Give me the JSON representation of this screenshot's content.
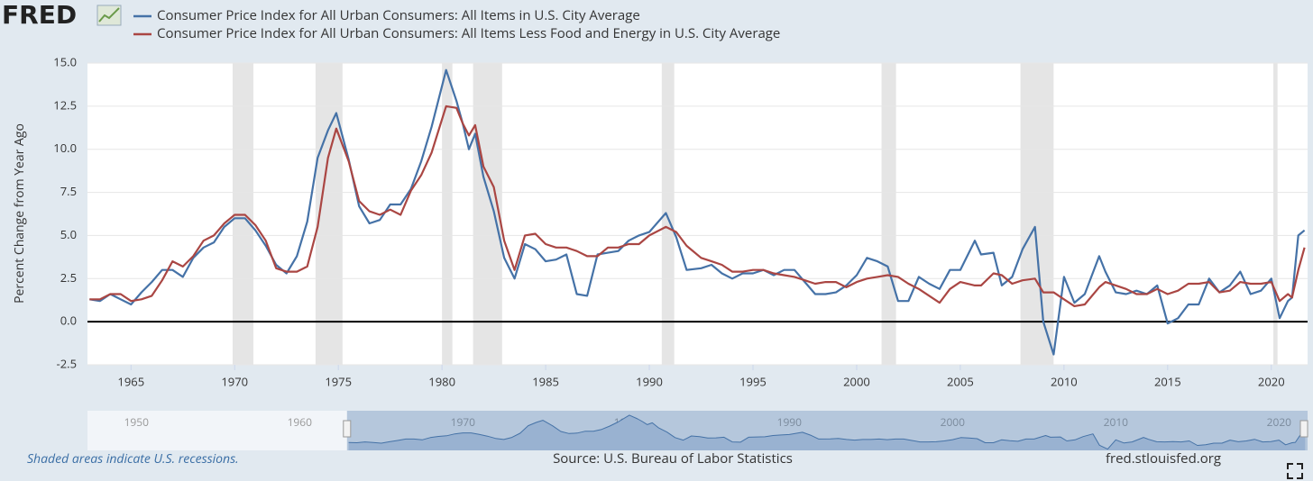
{
  "brand": "FRED",
  "chart_data": {
    "type": "line",
    "y_label": "Percent Change from Year Ago",
    "x": [
      1963,
      1963.5,
      1964,
      1964.5,
      1965,
      1965.5,
      1966,
      1966.5,
      1967,
      1967.5,
      1968,
      1968.5,
      1969,
      1969.5,
      1970,
      1970.5,
      1971,
      1971.5,
      1972,
      1972.5,
      1973,
      1973.5,
      1974,
      1974.5,
      1974.9,
      1975.5,
      1976,
      1976.5,
      1977,
      1977.5,
      1978,
      1978.5,
      1979,
      1979.5,
      1980.2,
      1980.7,
      1981,
      1981.3,
      1981.6,
      1982,
      1982.5,
      1983,
      1983.5,
      1984,
      1984.5,
      1985,
      1985.5,
      1986,
      1986.5,
      1987,
      1987.5,
      1988,
      1988.5,
      1989,
      1989.5,
      1990,
      1990.8,
      1991.3,
      1991.8,
      1992.5,
      1993,
      1993.5,
      1994,
      1994.5,
      1995,
      1995.5,
      1996,
      1996.5,
      1997,
      1997.5,
      1998,
      1998.5,
      1999,
      1999.5,
      2000,
      2000.5,
      2001,
      2001.5,
      2002,
      2002.5,
      2003,
      2003.5,
      2004,
      2004.5,
      2005,
      2005.7,
      2006,
      2006.6,
      2007,
      2007.5,
      2008,
      2008.6,
      2009,
      2009.5,
      2010,
      2010.5,
      2011,
      2011.7,
      2012,
      2012.5,
      2013,
      2013.5,
      2014,
      2014.5,
      2015,
      2015.5,
      2016,
      2016.5,
      2017,
      2017.5,
      2018,
      2018.5,
      2019,
      2019.5,
      2020,
      2020.4,
      2020.8,
      2021,
      2021.3,
      2021.6
    ],
    "series": [
      {
        "name": "Consumer Price Index for All Urban Consumers: All Items in U.S. City Average",
        "color": "#4572a7",
        "values": [
          1.3,
          1.2,
          1.6,
          1.3,
          1.0,
          1.7,
          2.3,
          3.0,
          3.0,
          2.6,
          3.7,
          4.3,
          4.6,
          5.5,
          6.0,
          6.0,
          5.3,
          4.4,
          3.3,
          2.8,
          3.8,
          5.8,
          9.5,
          11.1,
          12.1,
          9.4,
          6.7,
          5.7,
          5.9,
          6.8,
          6.8,
          7.7,
          9.3,
          11.3,
          14.6,
          12.8,
          11.5,
          10.0,
          10.9,
          8.4,
          6.4,
          3.7,
          2.5,
          4.5,
          4.2,
          3.5,
          3.6,
          3.9,
          1.6,
          1.5,
          3.9,
          4.0,
          4.1,
          4.7,
          5.0,
          5.2,
          6.3,
          4.9,
          3.0,
          3.1,
          3.3,
          2.8,
          2.5,
          2.8,
          2.8,
          3.0,
          2.7,
          3.0,
          3.0,
          2.3,
          1.6,
          1.6,
          1.7,
          2.1,
          2.7,
          3.7,
          3.5,
          3.2,
          1.2,
          1.2,
          2.6,
          2.2,
          1.9,
          3.0,
          3.0,
          4.7,
          3.9,
          4.0,
          2.1,
          2.6,
          4.2,
          5.5,
          0.0,
          -1.9,
          2.6,
          1.1,
          1.6,
          3.8,
          2.9,
          1.7,
          1.6,
          1.8,
          1.6,
          2.1,
          -0.1,
          0.2,
          1.0,
          1.0,
          2.5,
          1.7,
          2.1,
          2.9,
          1.6,
          1.8,
          2.5,
          0.2,
          1.2,
          1.4,
          5.0,
          5.3
        ]
      },
      {
        "name": "Consumer Price Index for All Urban Consumers: All Items Less Food and Energy in U.S. City Average",
        "color": "#aa4643",
        "values": [
          1.3,
          1.3,
          1.6,
          1.6,
          1.2,
          1.3,
          1.5,
          2.4,
          3.5,
          3.2,
          3.8,
          4.7,
          5.0,
          5.7,
          6.2,
          6.2,
          5.6,
          4.7,
          3.1,
          2.9,
          2.9,
          3.2,
          5.5,
          9.5,
          11.2,
          9.3,
          7.0,
          6.4,
          6.2,
          6.5,
          6.2,
          7.6,
          8.5,
          9.8,
          12.5,
          12.4,
          11.5,
          10.8,
          11.4,
          9.0,
          7.8,
          4.7,
          3.0,
          5.0,
          5.1,
          4.5,
          4.3,
          4.3,
          4.1,
          3.8,
          3.8,
          4.3,
          4.3,
          4.5,
          4.5,
          5.0,
          5.5,
          5.2,
          4.4,
          3.7,
          3.5,
          3.3,
          2.9,
          2.9,
          3.0,
          3.0,
          2.8,
          2.7,
          2.6,
          2.4,
          2.2,
          2.3,
          2.3,
          2.0,
          2.3,
          2.5,
          2.6,
          2.7,
          2.6,
          2.2,
          1.9,
          1.5,
          1.1,
          1.9,
          2.3,
          2.1,
          2.1,
          2.8,
          2.7,
          2.2,
          2.4,
          2.5,
          1.7,
          1.7,
          1.3,
          0.9,
          1.0,
          2.0,
          2.3,
          2.1,
          1.9,
          1.6,
          1.6,
          1.9,
          1.6,
          1.8,
          2.2,
          2.2,
          2.3,
          1.7,
          1.8,
          2.3,
          2.2,
          2.2,
          2.3,
          1.2,
          1.6,
          1.4,
          3.0,
          4.3
        ]
      }
    ],
    "xlim": [
      1962.9,
      2021.75
    ],
    "xticks": [
      1965,
      1970,
      1975,
      1980,
      1985,
      1990,
      1995,
      2000,
      2005,
      2010,
      2015,
      2020
    ],
    "ylim": [
      -2.5,
      15
    ],
    "yticks": [
      {
        "value": -2.5,
        "label": "-2.5"
      },
      {
        "value": 0,
        "label": "0.0"
      },
      2.5,
      {
        "value": 5,
        "label": "5.0"
      },
      7.5,
      {
        "value": 10,
        "label": "10.0"
      },
      12.5,
      {
        "value": 15,
        "label": "15.0"
      }
    ],
    "grid": true,
    "recessions": [
      {
        "start": 1969.9,
        "end": 1970.9
      },
      {
        "start": 1973.9,
        "end": 1975.2
      },
      {
        "start": 1980.0,
        "end": 1980.5
      },
      {
        "start": 1981.5,
        "end": 1982.9
      },
      {
        "start": 1990.6,
        "end": 1991.2
      },
      {
        "start": 2001.2,
        "end": 2001.9
      },
      {
        "start": 2007.9,
        "end": 2009.5
      },
      {
        "start": 2020.1,
        "end": 2020.3
      }
    ],
    "navigator": {
      "xlim": [
        1947,
        2021.75
      ],
      "xticks": [
        1950,
        1960,
        1970,
        1980,
        1990,
        2000,
        2010,
        2020
      ]
    }
  },
  "footer": {
    "note": "Shaded areas indicate U.S. recessions.",
    "source": "Source: U.S. Bureau of Labor Statistics",
    "site": "fred.stlouisfed.org"
  }
}
